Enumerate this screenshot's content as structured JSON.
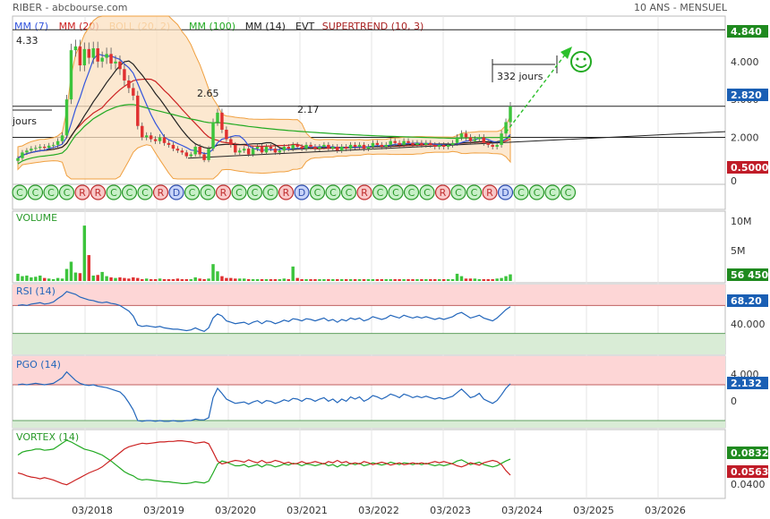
{
  "header": {
    "source": "RIBER - abcbourse.com",
    "period": "10 ANS - MENSUEL"
  },
  "colors": {
    "mm7": "#3355dd",
    "mm20": "#cc2222",
    "boll": "#f0a040",
    "mm100": "#22aa22",
    "mm14": "#222222",
    "evt": "#222222",
    "supertrend": "#aa2222",
    "up": "#3cc43c",
    "down": "#e03030",
    "rsi": "#2266bb",
    "price_tag": "#1a5fb4",
    "green_tag": "#1f8a1f",
    "red_tag": "#c01c28"
  },
  "legend": [
    {
      "label": "MM (7)",
      "color": "#3355dd"
    },
    {
      "label": "MM (20)",
      "color": "#cc2222"
    },
    {
      "label": "BOLL (20, 2)",
      "color": "#f0a040"
    },
    {
      "label": "MM (100)",
      "color": "#22aa22"
    },
    {
      "label": "MM (14)",
      "color": "#222222"
    },
    {
      "label": "EVT",
      "color": "#222222"
    },
    {
      "label": "SUPERTREND (10, 3)",
      "color": "#aa2222"
    }
  ],
  "annotations": {
    "level_high": "4.33",
    "level_mid": "2.65",
    "level_low": "2.17",
    "days_left": "jours",
    "days_right": "332 jours"
  },
  "chart_data": {
    "type": "candlestick",
    "x_ticks": [
      "03/2018",
      "03/2019",
      "03/2020",
      "03/2021",
      "03/2022",
      "03/2023",
      "03/2024",
      "03/2025",
      "03/2026"
    ],
    "price_axis": {
      "ticks": [
        "4.000",
        "3.000",
        "2.000"
      ],
      "ylim": [
        0.9,
        5.2
      ]
    },
    "price_tags": {
      "resistance": "4.840",
      "last": "2.820",
      "support": "0.5000"
    },
    "horizontal_levels": [
      4.84,
      2.82,
      2.0
    ],
    "closes": [
      1.45,
      1.6,
      1.65,
      1.7,
      1.72,
      1.75,
      1.72,
      1.78,
      1.8,
      1.9,
      2.05,
      3.0,
      4.3,
      4.4,
      3.9,
      4.33,
      4.1,
      4.35,
      4.0,
      4.1,
      4.2,
      3.95,
      4.0,
      3.8,
      3.5,
      3.3,
      3.1,
      2.3,
      2.0,
      2.05,
      1.95,
      1.9,
      2.0,
      1.85,
      1.8,
      1.7,
      1.65,
      1.6,
      1.5,
      1.55,
      1.75,
      1.55,
      1.4,
      1.7,
      2.4,
      2.65,
      2.2,
      1.95,
      1.8,
      1.6,
      1.65,
      1.7,
      1.55,
      1.7,
      1.75,
      1.6,
      1.75,
      1.7,
      1.6,
      1.65,
      1.75,
      1.7,
      1.8,
      1.75,
      1.7,
      1.8,
      1.75,
      1.7,
      1.75,
      1.8,
      1.7,
      1.75,
      1.65,
      1.75,
      1.7,
      1.8,
      1.75,
      1.8,
      1.7,
      1.75,
      1.85,
      1.8,
      1.75,
      1.8,
      1.9,
      1.85,
      1.8,
      1.9,
      1.85,
      1.8,
      1.85,
      1.8,
      1.85,
      1.8,
      1.75,
      1.8,
      1.75,
      1.8,
      1.85,
      2.0,
      2.1,
      2.0,
      1.9,
      1.95,
      2.0,
      1.85,
      1.8,
      1.75,
      1.8,
      2.1,
      2.4,
      2.82
    ],
    "signals": [
      "C",
      "C",
      "C",
      "C",
      "R",
      "R",
      "C",
      "C",
      "C",
      "R",
      "D",
      "C",
      "C",
      "R",
      "C",
      "C",
      "C",
      "R",
      "D",
      "C",
      "C",
      "C",
      "R",
      "C",
      "C",
      "C",
      "C",
      "R",
      "C",
      "C",
      "R",
      "D",
      "C",
      "C",
      "C",
      "C"
    ],
    "volume": {
      "axis_ticks": [
        "10M",
        "5M"
      ],
      "last": "56 450",
      "values": [
        1.2,
        0.8,
        0.9,
        0.6,
        0.7,
        0.9,
        0.5,
        0.4,
        0.3,
        0.5,
        0.4,
        2.0,
        3.2,
        1.4,
        1.3,
        9.2,
        4.3,
        0.9,
        1.0,
        1.5,
        0.8,
        0.6,
        0.5,
        0.6,
        0.5,
        0.4,
        0.6,
        0.5,
        0.3,
        0.4,
        0.3,
        0.3,
        0.4,
        0.3,
        0.3,
        0.3,
        0.4,
        0.3,
        0.3,
        0.3,
        0.6,
        0.4,
        0.3,
        0.4,
        2.8,
        1.6,
        0.8,
        0.5,
        0.5,
        0.4,
        0.4,
        0.4,
        0.3,
        0.3,
        0.3,
        0.3,
        0.3,
        0.3,
        0.3,
        0.3,
        0.4,
        0.3,
        2.4,
        0.5,
        0.3,
        0.3,
        0.3,
        0.3,
        0.3,
        0.3,
        0.3,
        0.3,
        0.3,
        0.3,
        0.3,
        0.3,
        0.3,
        0.3,
        0.3,
        0.3,
        0.3,
        0.3,
        0.3,
        0.3,
        0.3,
        0.3,
        0.3,
        0.3,
        0.3,
        0.3,
        0.3,
        0.3,
        0.3,
        0.3,
        0.3,
        0.3,
        0.3,
        0.3,
        0.3,
        1.2,
        0.8,
        0.4,
        0.4,
        0.4,
        0.3,
        0.3,
        0.3,
        0.3,
        0.4,
        0.5,
        0.8,
        1.1
      ]
    },
    "rsi": {
      "label": "RSI (14)",
      "axis_ticks": [
        "40.000"
      ],
      "last": "68.20",
      "ylim": [
        0,
        100
      ],
      "overbought": 70,
      "oversold": 30,
      "values": [
        70,
        71,
        70,
        72,
        73,
        74,
        72,
        73,
        75,
        80,
        84,
        90,
        88,
        86,
        82,
        80,
        78,
        77,
        75,
        74,
        75,
        73,
        72,
        70,
        66,
        62,
        55,
        42,
        40,
        41,
        40,
        39,
        40,
        38,
        37,
        36,
        36,
        35,
        34,
        35,
        38,
        35,
        33,
        38,
        52,
        58,
        55,
        48,
        46,
        44,
        45,
        46,
        43,
        46,
        48,
        44,
        48,
        47,
        44,
        46,
        49,
        47,
        51,
        50,
        48,
        51,
        50,
        48,
        50,
        52,
        48,
        50,
        46,
        50,
        48,
        52,
        50,
        52,
        48,
        50,
        54,
        52,
        50,
        52,
        56,
        54,
        52,
        56,
        54,
        52,
        54,
        52,
        54,
        52,
        50,
        52,
        50,
        52,
        54,
        58,
        60,
        56,
        52,
        54,
        56,
        52,
        50,
        48,
        52,
        58,
        64,
        68.2
      ]
    },
    "pgo": {
      "label": "PGO (14)",
      "axis_ticks": [
        "4.000",
        "0"
      ],
      "last": "2.132",
      "ylim": [
        -4,
        6
      ],
      "upper": 2,
      "lower": -3,
      "values": [
        2.0,
        2.1,
        2.0,
        2.1,
        2.2,
        2.1,
        2.0,
        2.1,
        2.2,
        2.6,
        3.0,
        3.8,
        3.2,
        2.6,
        2.2,
        2.0,
        1.9,
        2.0,
        1.8,
        1.7,
        1.6,
        1.4,
        1.2,
        1.0,
        0.4,
        -0.5,
        -1.5,
        -3.0,
        -3.1,
        -3.0,
        -3.0,
        -3.1,
        -3.0,
        -3.1,
        -3.1,
        -3.0,
        -3.1,
        -3.1,
        -3.0,
        -3.0,
        -2.8,
        -2.9,
        -2.9,
        -2.6,
        0.2,
        1.5,
        0.8,
        0.0,
        -0.3,
        -0.6,
        -0.5,
        -0.4,
        -0.7,
        -0.4,
        -0.2,
        -0.6,
        -0.2,
        -0.3,
        -0.6,
        -0.4,
        -0.1,
        -0.3,
        0.1,
        0.0,
        -0.3,
        0.1,
        0.0,
        -0.3,
        0.0,
        0.2,
        -0.3,
        0.0,
        -0.5,
        0.0,
        -0.3,
        0.3,
        0.0,
        0.3,
        -0.3,
        0.0,
        0.5,
        0.3,
        0.0,
        0.3,
        0.7,
        0.5,
        0.2,
        0.7,
        0.5,
        0.2,
        0.4,
        0.2,
        0.4,
        0.2,
        0.0,
        0.2,
        0.0,
        0.2,
        0.4,
        0.9,
        1.4,
        0.8,
        0.2,
        0.4,
        0.8,
        0.0,
        -0.3,
        -0.6,
        -0.2,
        0.6,
        1.5,
        2.132
      ]
    },
    "vortex": {
      "label": "VORTEX (14)",
      "axis_ticks": [
        "0.0400"
      ],
      "last_plus": "0.0832",
      "last_minus": "0.0563",
      "ylim": [
        0.02,
        0.13
      ],
      "plus": [
        0.09,
        0.095,
        0.097,
        0.098,
        0.1,
        0.1,
        0.098,
        0.099,
        0.1,
        0.105,
        0.11,
        0.115,
        0.112,
        0.108,
        0.104,
        0.1,
        0.098,
        0.096,
        0.093,
        0.09,
        0.085,
        0.08,
        0.074,
        0.068,
        0.062,
        0.058,
        0.055,
        0.05,
        0.048,
        0.049,
        0.048,
        0.047,
        0.046,
        0.045,
        0.045,
        0.044,
        0.043,
        0.042,
        0.042,
        0.043,
        0.045,
        0.044,
        0.043,
        0.046,
        0.06,
        0.075,
        0.08,
        0.078,
        0.075,
        0.072,
        0.072,
        0.074,
        0.07,
        0.072,
        0.074,
        0.07,
        0.074,
        0.073,
        0.07,
        0.072,
        0.075,
        0.073,
        0.076,
        0.075,
        0.072,
        0.075,
        0.074,
        0.072,
        0.074,
        0.076,
        0.072,
        0.074,
        0.07,
        0.074,
        0.072,
        0.076,
        0.074,
        0.076,
        0.072,
        0.074,
        0.077,
        0.075,
        0.073,
        0.075,
        0.078,
        0.076,
        0.074,
        0.077,
        0.076,
        0.074,
        0.076,
        0.074,
        0.076,
        0.074,
        0.072,
        0.074,
        0.072,
        0.074,
        0.076,
        0.08,
        0.082,
        0.078,
        0.074,
        0.076,
        0.078,
        0.074,
        0.072,
        0.07,
        0.072,
        0.076,
        0.08,
        0.0832
      ],
      "minus": [
        0.06,
        0.058,
        0.055,
        0.053,
        0.052,
        0.05,
        0.052,
        0.05,
        0.048,
        0.045,
        0.042,
        0.04,
        0.044,
        0.048,
        0.052,
        0.056,
        0.06,
        0.063,
        0.066,
        0.07,
        0.076,
        0.082,
        0.088,
        0.094,
        0.1,
        0.104,
        0.106,
        0.108,
        0.11,
        0.109,
        0.11,
        0.111,
        0.112,
        0.112,
        0.113,
        0.113,
        0.114,
        0.114,
        0.113,
        0.112,
        0.11,
        0.111,
        0.112,
        0.109,
        0.095,
        0.08,
        0.075,
        0.077,
        0.079,
        0.081,
        0.08,
        0.078,
        0.082,
        0.079,
        0.077,
        0.081,
        0.077,
        0.078,
        0.081,
        0.079,
        0.076,
        0.078,
        0.075,
        0.076,
        0.079,
        0.076,
        0.077,
        0.079,
        0.077,
        0.075,
        0.079,
        0.077,
        0.081,
        0.077,
        0.079,
        0.075,
        0.077,
        0.075,
        0.079,
        0.077,
        0.074,
        0.076,
        0.078,
        0.076,
        0.073,
        0.075,
        0.077,
        0.074,
        0.075,
        0.077,
        0.075,
        0.077,
        0.075,
        0.077,
        0.079,
        0.077,
        0.079,
        0.077,
        0.075,
        0.072,
        0.07,
        0.073,
        0.077,
        0.075,
        0.073,
        0.077,
        0.079,
        0.081,
        0.079,
        0.074,
        0.064,
        0.0563
      ]
    }
  }
}
